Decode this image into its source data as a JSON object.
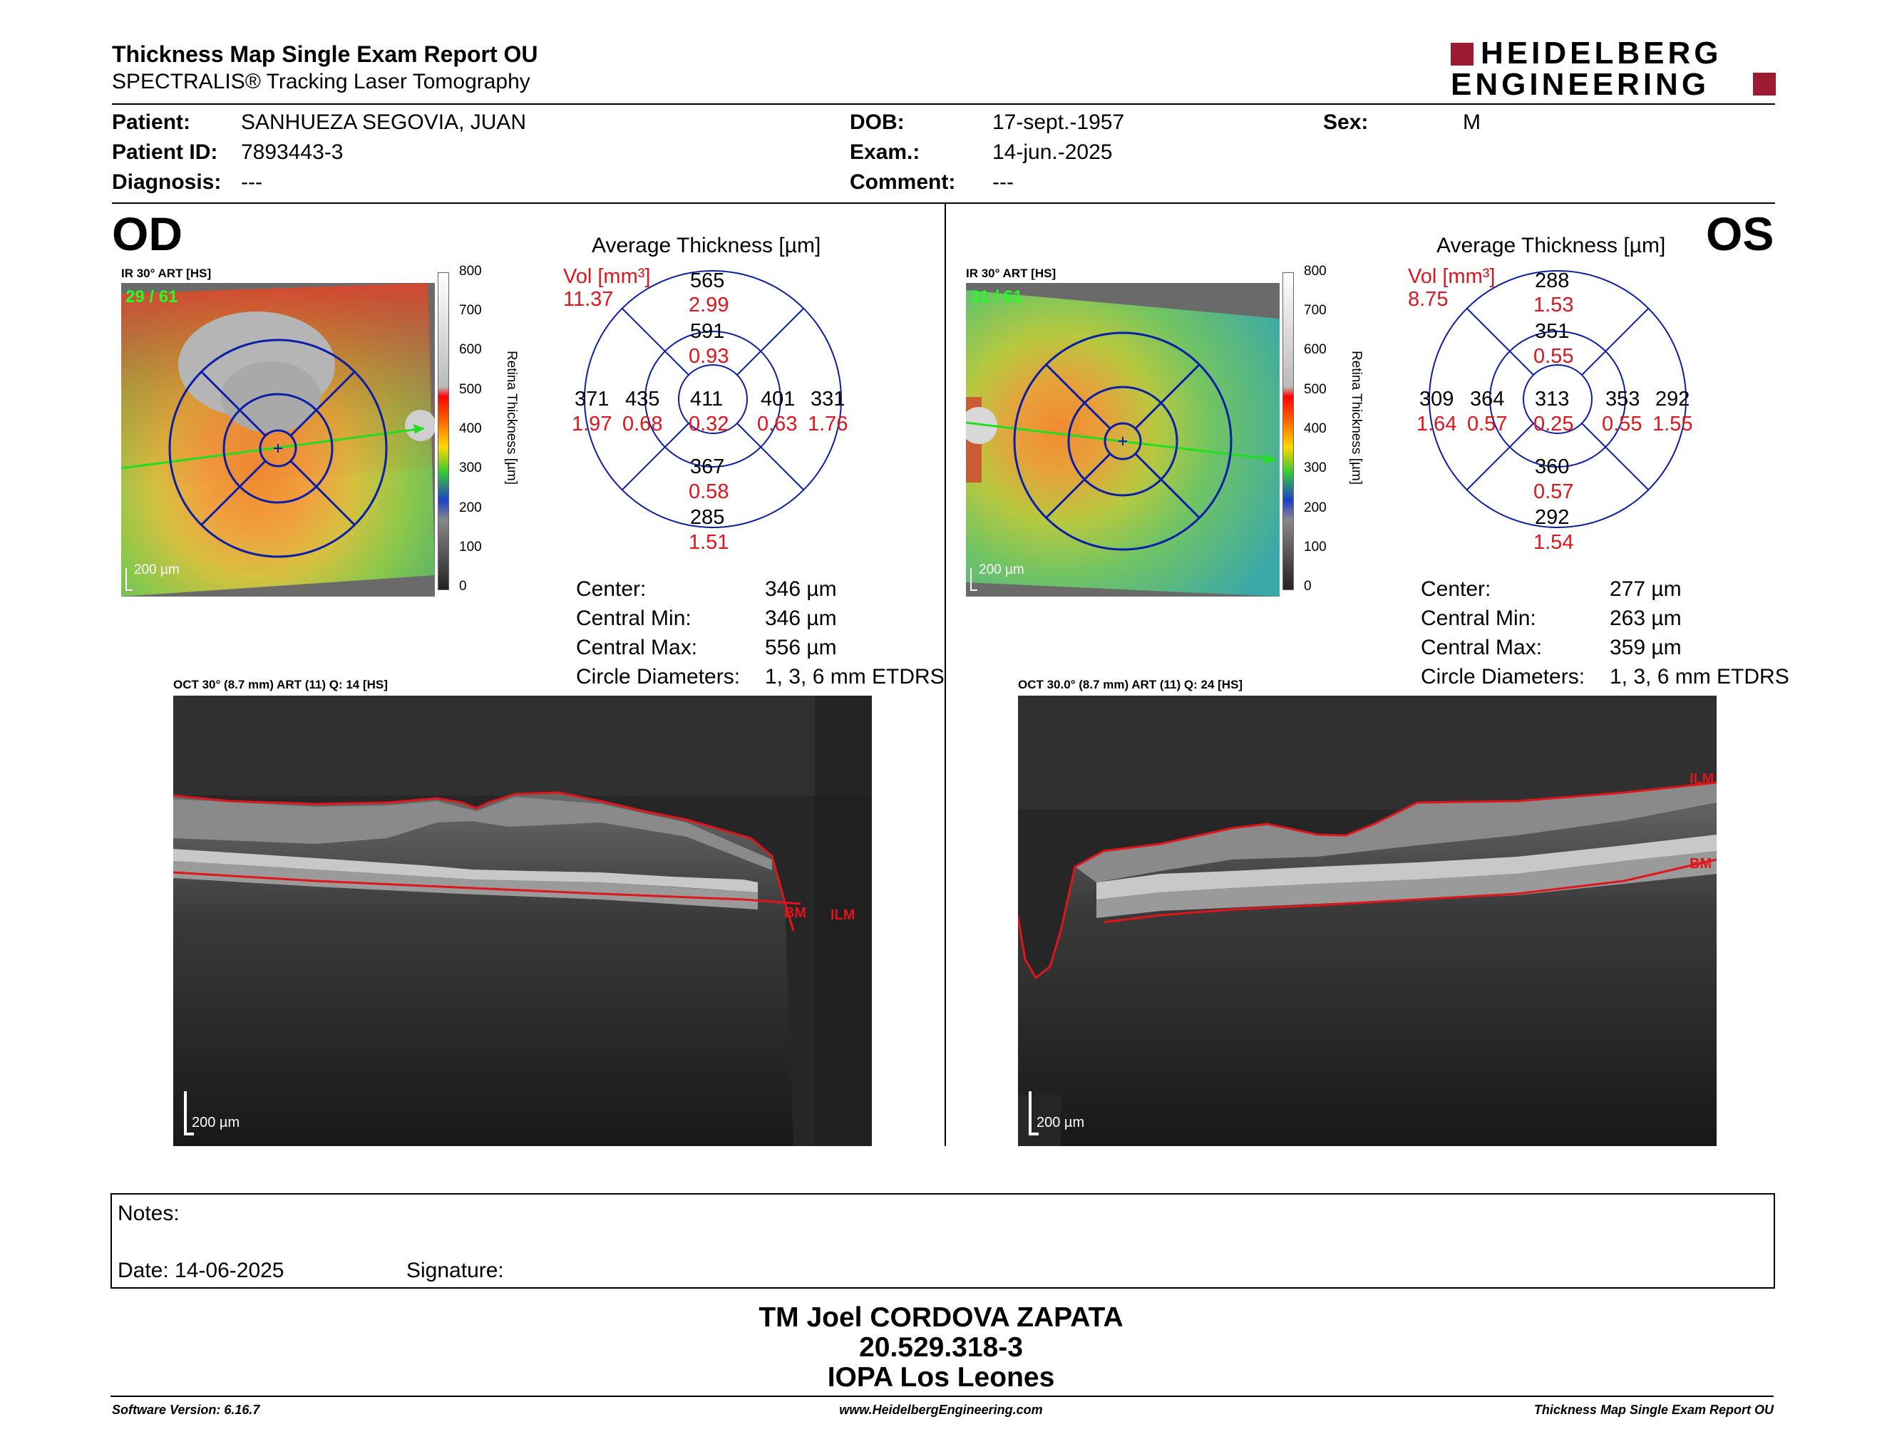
{
  "header": {
    "title": "Thickness Map Single Exam Report OU",
    "subtitle": "SPECTRALIS® Tracking Laser Tomography",
    "logo_line1": "HEIDELBERG",
    "logo_line2": "ENGINEERING"
  },
  "patient": {
    "patient_label": "Patient:",
    "patient_value": "SANHUEZA SEGOVIA, JUAN",
    "id_label": "Patient ID:",
    "id_value": "7893443-3",
    "diag_label": "Diagnosis:",
    "diag_value": "---",
    "dob_label": "DOB:",
    "dob_value": "17-sept.-1957",
    "exam_label": "Exam.:",
    "exam_value": "14-jun.-2025",
    "comment_label": "Comment:",
    "comment_value": "---",
    "sex_label": "Sex:",
    "sex_value": "M"
  },
  "od": {
    "eye": "OD",
    "ir_caption": "IR 30° ART [HS]",
    "frame": "29 / 61",
    "scale": "200 µm",
    "avg_title": "Average Thickness [µm]",
    "vol_label": "Vol [mm³]",
    "vol_value": "11.37",
    "grid": {
      "center": {
        "t": "411",
        "v": "0.32"
      },
      "inner_sup": {
        "t": "591",
        "v": "0.93"
      },
      "inner_inf": {
        "t": "367",
        "v": "0.58"
      },
      "inner_left": {
        "t": "435",
        "v": "0.68"
      },
      "inner_right": {
        "t": "401",
        "v": "0.63"
      },
      "outer_sup": {
        "t": "565",
        "v": "2.99"
      },
      "outer_inf": {
        "t": "285",
        "v": "1.51"
      },
      "outer_left": {
        "t": "371",
        "v": "1.97"
      },
      "outer_right": {
        "t": "331",
        "v": "1.76"
      }
    },
    "stats": {
      "center_label": "Center:",
      "center_value": "346 µm",
      "min_label": "Central Min:",
      "min_value": "346 µm",
      "max_label": "Central Max:",
      "max_value": "556 µm",
      "diam_label": "Circle Diameters:",
      "diam_value": "1, 3, 6 mm ETDRS"
    },
    "oct_caption": "OCT 30° (8.7 mm) ART (11) Q: 14 [HS]",
    "oct_scale": "200 µm",
    "label_bm": "BM",
    "label_ilm": "ILM"
  },
  "os": {
    "eye": "OS",
    "ir_caption": "IR 30° ART [HS]",
    "frame": "31 / 61",
    "scale": "200 µm",
    "avg_title": "Average Thickness [µm]",
    "vol_label": "Vol [mm³]",
    "vol_value": "8.75",
    "grid": {
      "center": {
        "t": "313",
        "v": "0.25"
      },
      "inner_sup": {
        "t": "351",
        "v": "0.55"
      },
      "inner_inf": {
        "t": "360",
        "v": "0.57"
      },
      "inner_left": {
        "t": "364",
        "v": "0.57"
      },
      "inner_right": {
        "t": "353",
        "v": "0.55"
      },
      "outer_sup": {
        "t": "288",
        "v": "1.53"
      },
      "outer_inf": {
        "t": "292",
        "v": "1.54"
      },
      "outer_left": {
        "t": "309",
        "v": "1.64"
      },
      "outer_right": {
        "t": "292",
        "v": "1.55"
      }
    },
    "stats": {
      "center_label": "Center:",
      "center_value": "277 µm",
      "min_label": "Central Min:",
      "min_value": "263 µm",
      "max_label": "Central Max:",
      "max_value": "359 µm",
      "diam_label": "Circle Diameters:",
      "diam_value": "1, 3, 6 mm ETDRS"
    },
    "oct_caption": "OCT 30.0° (8.7 mm) ART (11) Q: 24 [HS]",
    "oct_scale": "200 µm",
    "label_bm": "BM",
    "label_ilm": "ILM"
  },
  "colorbar": {
    "ticks": [
      "800",
      "700",
      "600",
      "500",
      "400",
      "300",
      "200",
      "100",
      "0"
    ],
    "label": "Retina Thickness [µm]"
  },
  "notes": {
    "notes_label": "Notes:",
    "date_label": "Date: 14-06-2025",
    "signature_label": "Signature:"
  },
  "signer": {
    "name": "TM Joel CORDOVA ZAPATA",
    "rut": "20.529.318-3",
    "institution": "IOPA Los Leones"
  },
  "footer": {
    "software": "Software Version: 6.16.7",
    "website": "www.HeidelbergEngineering.com",
    "report": "Thickness Map Single Exam Report OU"
  },
  "colors": {
    "brand": "#9b1b30",
    "grid": "#0a1fa8",
    "volume": "#e0141b",
    "scan_line": "#22dd22"
  }
}
